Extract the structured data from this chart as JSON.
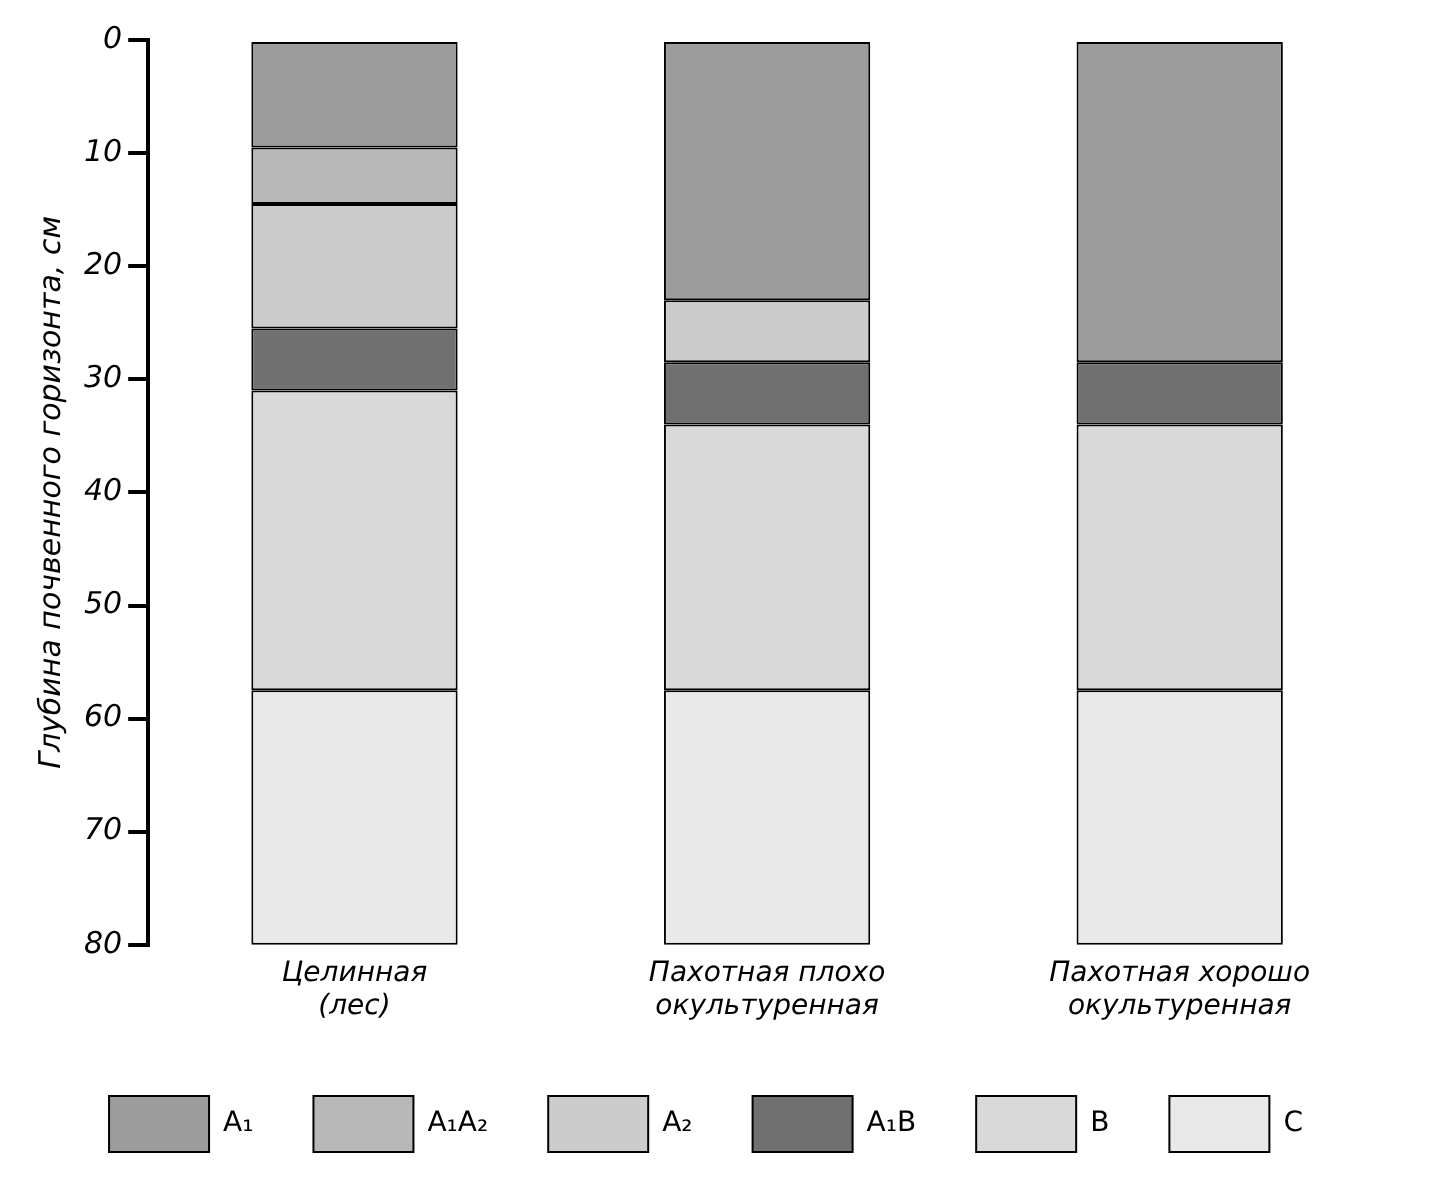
{
  "chart_data": {
    "type": "bar",
    "stacked": true,
    "ylabel": "Глубина почвенного горизонта, см",
    "categories": [
      "Целинная\n(лес)",
      "Пахотная плохо\nокультуренная",
      "Пахотная хорошо\nокультуренная"
    ],
    "series": [
      {
        "name": "A₁",
        "color": "#9c9c9c",
        "values": [
          9.5,
          23,
          28.5
        ]
      },
      {
        "name": "A₁A₂",
        "color": "#b8b8b8",
        "values": [
          5,
          null,
          null
        ]
      },
      {
        "name": "A₂",
        "color": "#cccccc",
        "values": [
          11,
          5.5,
          null
        ]
      },
      {
        "name": "A₁B",
        "color": "#707070",
        "values": [
          5.5,
          5.5,
          5.5
        ]
      },
      {
        "name": "B",
        "color": "#d9d9d9",
        "values": [
          26.5,
          23.5,
          23.5
        ]
      },
      {
        "name": "C",
        "color": "#e9e9e9",
        "values": [
          22.5,
          22.5,
          22.5
        ]
      }
    ],
    "ylim": [
      80,
      0
    ],
    "yticks": [
      0,
      10,
      20,
      30,
      40,
      50,
      60,
      70,
      80
    ],
    "grid": false,
    "legend": "bottom"
  }
}
